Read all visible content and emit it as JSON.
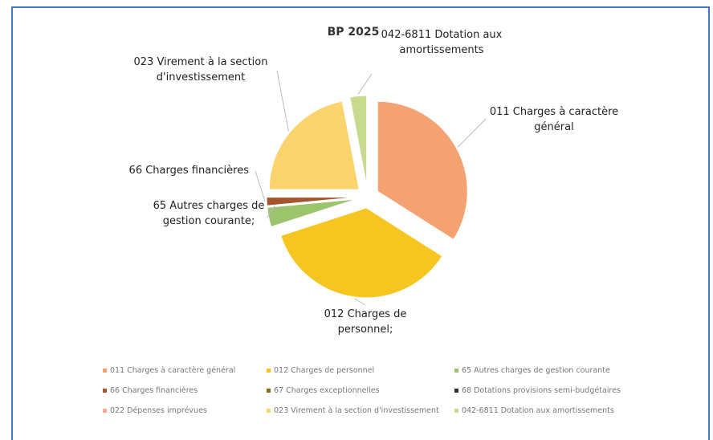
{
  "chart_data": {
    "type": "pie",
    "title": "BP 2025",
    "categories": [
      "011 Charges à caractère général",
      "012 Charges de personnel",
      "65 Autres charges de gestion courante",
      "66 Charges financières",
      "67 Charges exceptionnelles",
      "68 Dotations provisions semi-budgétaires",
      "022 Dépenses imprévues",
      "023 Virement à la section d'investissement",
      "042-6811 Dotation aux amortissements"
    ],
    "values": [
      34,
      36,
      3.5,
      1.5,
      0,
      0,
      0,
      22,
      3
    ],
    "colors": [
      "#f4a272",
      "#f6c51f",
      "#9cc46c",
      "#a4552e",
      "#8d6b1c",
      "#2f2f2f",
      "#f7ac8e",
      "#fbd46e",
      "#c8da8d"
    ],
    "data_labels": [
      "011 Charges à caractère général",
      "012 Charges de personnel;",
      "65 Autres charges de gestion courante;",
      "66 Charges financières",
      null,
      null,
      null,
      "023 Virement à la section d'investissement",
      "042-6811 Dotation aux amortissements"
    ],
    "legend": "bottom"
  }
}
